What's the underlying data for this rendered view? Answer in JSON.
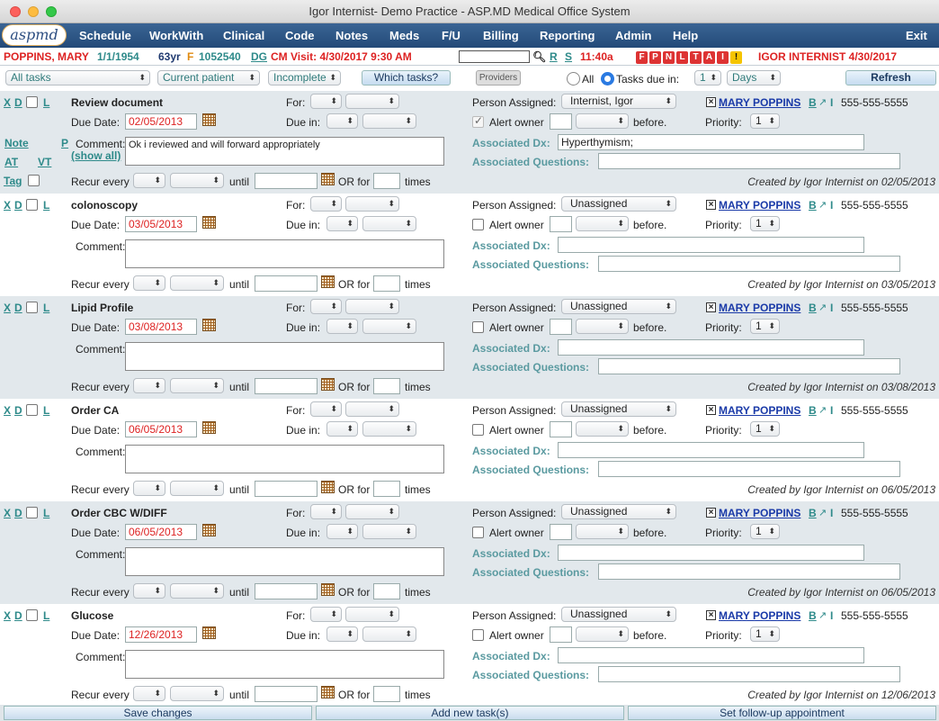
{
  "window": {
    "title": "Igor Internist- Demo Practice - ASP.MD Medical Office System"
  },
  "logo": "aspmd",
  "menu": [
    "Schedule",
    "WorkWith",
    "Clinical",
    "Code",
    "Notes",
    "Meds",
    "F/U",
    "Billing",
    "Reporting",
    "Admin",
    "Help",
    "Exit"
  ],
  "patient": {
    "name": "POPPINS, MARY",
    "dob": "1/1/1954",
    "age": "63yr",
    "sex": "F",
    "id": "1052540",
    "dg": "DG",
    "cm": "CM",
    "visit": "Visit: 4/30/2017 9:30 AM",
    "r": "R",
    "s": "S",
    "time": "11:40a",
    "flags": [
      "F",
      "P",
      "N",
      "L",
      "T",
      "A",
      "I",
      "!"
    ],
    "doctor": "IGOR INTERNIST 4/30/2017"
  },
  "filters": {
    "tasks": "All tasks",
    "patient": "Current patient",
    "status": "Incomplete",
    "which": "Which tasks?",
    "providers": "Providers",
    "all": "All",
    "due_in": "Tasks due in:",
    "due_num": "1",
    "due_unit": "Days",
    "refresh": "Refresh"
  },
  "labels": {
    "x": "X",
    "d": "D",
    "l": "L",
    "note": "Note",
    "p": "P",
    "at": "AT",
    "vt": "VT",
    "tag": "Tag",
    "comment": "Comment:",
    "show_all": "(show all)",
    "due_date": "Due Date:",
    "for": "For:",
    "due_in": "Due in:",
    "recur": "Recur every",
    "until": "until",
    "or_for": "OR for",
    "times": "times",
    "person": "Person Assigned:",
    "alert": "Alert owner",
    "before": "before.",
    "priority": "Priority:",
    "dx": "Associated Dx:",
    "questions": "Associated Questions:",
    "b": "B",
    "i": "I"
  },
  "tasks": [
    {
      "title": "Review document",
      "due": "02/05/2013",
      "comment": "Ok i reviewed and will forward appropriately",
      "assigned": "Internist, Igor",
      "alert_checked": true,
      "priority": "1",
      "dx": "Hyperthymism;",
      "patient": "MARY POPPINS",
      "phone": "555-555-5555",
      "created": "Created by Igor Internist on 02/05/2013"
    },
    {
      "title": "colonoscopy",
      "due": "03/05/2013",
      "comment": "",
      "assigned": "Unassigned",
      "alert_checked": false,
      "priority": "1",
      "dx": "",
      "patient": "MARY POPPINS",
      "phone": "555-555-5555",
      "created": "Created by Igor Internist on 03/05/2013"
    },
    {
      "title": "Lipid Profile",
      "due": "03/08/2013",
      "comment": "",
      "assigned": "Unassigned",
      "alert_checked": false,
      "priority": "1",
      "dx": "",
      "patient": "MARY POPPINS",
      "phone": "555-555-5555",
      "created": "Created by Igor Internist on 03/08/2013"
    },
    {
      "title": "Order CA",
      "due": "06/05/2013",
      "comment": "",
      "assigned": "Unassigned",
      "alert_checked": false,
      "priority": "1",
      "dx": "",
      "patient": "MARY POPPINS",
      "phone": "555-555-5555",
      "created": "Created by Igor Internist on 06/05/2013"
    },
    {
      "title": "Order CBC W/DIFF",
      "due": "06/05/2013",
      "comment": "",
      "assigned": "Unassigned",
      "alert_checked": false,
      "priority": "1",
      "dx": "",
      "patient": "MARY POPPINS",
      "phone": "555-555-5555",
      "created": "Created by Igor Internist on 06/05/2013"
    },
    {
      "title": "Glucose",
      "due": "12/26/2013",
      "comment": "",
      "assigned": "Unassigned",
      "alert_checked": false,
      "priority": "1",
      "dx": "",
      "patient": "MARY POPPINS",
      "phone": "555-555-5555",
      "created": "Created by Igor Internist on 12/06/2013"
    }
  ],
  "bottom": {
    "save": "Save changes",
    "add": "Add new task(s)",
    "followup": "Set follow-up appointment"
  }
}
